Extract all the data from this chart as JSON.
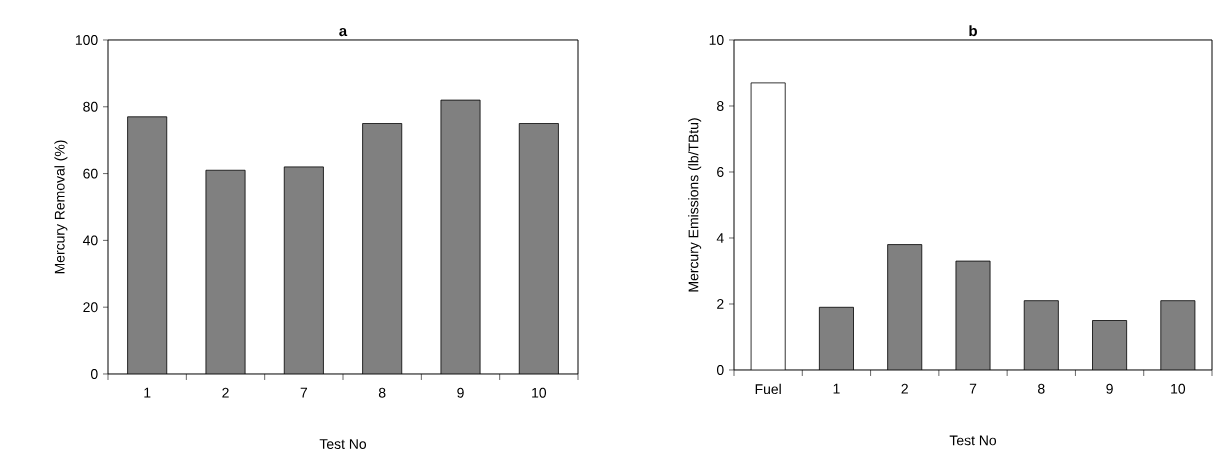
{
  "chart_data": [
    {
      "type": "bar",
      "title": "**a**",
      "xlabel": "Test No",
      "ylabel": "Mercury Removal (%)",
      "categories": [
        "1",
        "2",
        "7",
        "8",
        "9",
        "10"
      ],
      "values": [
        77,
        61,
        62,
        75,
        82,
        75
      ],
      "colors": [
        "#808080",
        "#808080",
        "#808080",
        "#808080",
        "#808080",
        "#808080"
      ],
      "ylim": [
        0,
        100
      ],
      "yticks": [
        0,
        20,
        40,
        60,
        80,
        100
      ]
    },
    {
      "type": "bar",
      "title": "**b**",
      "xlabel": "Test No",
      "ylabel": "Mercury Emissions (lb/TBtu)",
      "categories": [
        "Fuel",
        "1",
        "2",
        "7",
        "8",
        "9",
        "10"
      ],
      "values": [
        8.7,
        1.9,
        3.8,
        3.3,
        2.1,
        1.5,
        2.1
      ],
      "colors": [
        "#ffffff",
        "#808080",
        "#808080",
        "#808080",
        "#808080",
        "#808080",
        "#808080"
      ],
      "ylim": [
        0,
        10
      ],
      "yticks": [
        0,
        2,
        4,
        6,
        8,
        10
      ]
    }
  ]
}
